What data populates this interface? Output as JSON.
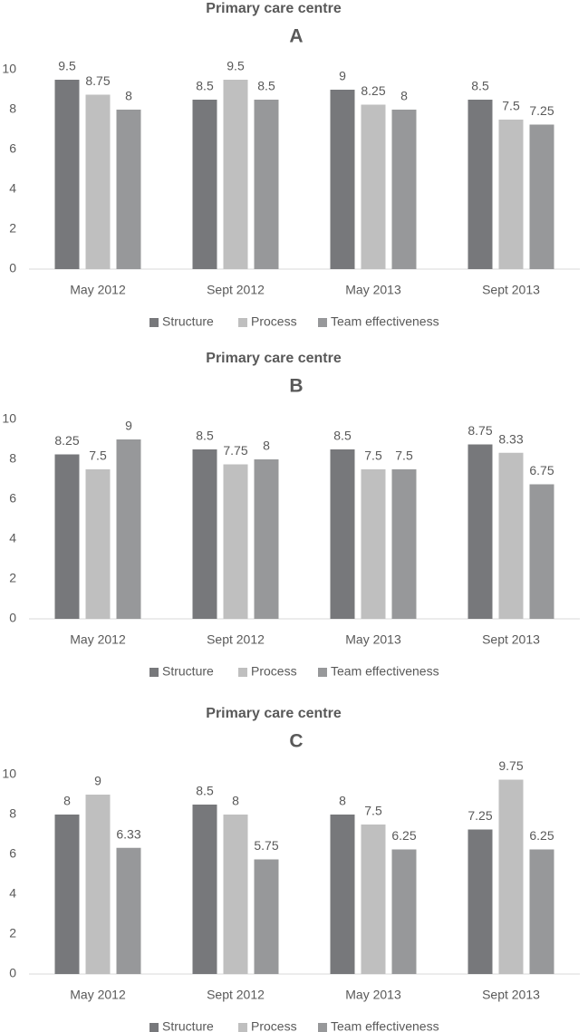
{
  "chart_data": [
    {
      "type": "bar",
      "title": "Primary care centre",
      "subtitle": "A",
      "categories": [
        "May 2012",
        "Sept 2012",
        "May 2013",
        "Sept 2013"
      ],
      "series": [
        {
          "name": "Structure",
          "color": "#77787b",
          "values": [
            9.5,
            8.5,
            9,
            8.5
          ]
        },
        {
          "name": "Process",
          "color": "#bfbfbf",
          "values": [
            8.75,
            9.5,
            8.25,
            7.5
          ]
        },
        {
          "name": "Team effectiveness",
          "color": "#97989a",
          "values": [
            8,
            8.5,
            8,
            7.25
          ]
        }
      ],
      "ylim": [
        0,
        10
      ],
      "yticks": [
        0,
        2,
        4,
        6,
        8,
        10
      ],
      "grid": false,
      "legend": "bottom"
    },
    {
      "type": "bar",
      "title": "Primary care centre",
      "subtitle": "B",
      "categories": [
        "May 2012",
        "Sept 2012",
        "May 2013",
        "Sept 2013"
      ],
      "series": [
        {
          "name": "Structure",
          "color": "#77787b",
          "values": [
            8.25,
            8.5,
            8.5,
            8.75
          ]
        },
        {
          "name": "Process",
          "color": "#bfbfbf",
          "values": [
            7.5,
            7.75,
            7.5,
            8.33
          ]
        },
        {
          "name": "Team effectiveness",
          "color": "#97989a",
          "values": [
            9,
            8,
            7.5,
            6.75
          ]
        }
      ],
      "ylim": [
        0,
        10
      ],
      "yticks": [
        0,
        2,
        4,
        6,
        8,
        10
      ],
      "grid": false,
      "legend": "bottom"
    },
    {
      "type": "bar",
      "title": "Primary care centre",
      "subtitle": "C",
      "categories": [
        "May 2012",
        "Sept 2012",
        "May 2013",
        "Sept 2013"
      ],
      "series": [
        {
          "name": "Structure",
          "color": "#77787b",
          "values": [
            8,
            8.5,
            8,
            7.25
          ]
        },
        {
          "name": "Process",
          "color": "#bfbfbf",
          "values": [
            9,
            8,
            7.5,
            9.75
          ]
        },
        {
          "name": "Team effectiveness",
          "color": "#97989a",
          "values": [
            6.33,
            5.75,
            6.25,
            6.25
          ]
        }
      ],
      "ylim": [
        0,
        10
      ],
      "yticks": [
        0,
        2,
        4,
        6,
        8,
        10
      ],
      "grid": false,
      "legend": "bottom"
    }
  ]
}
